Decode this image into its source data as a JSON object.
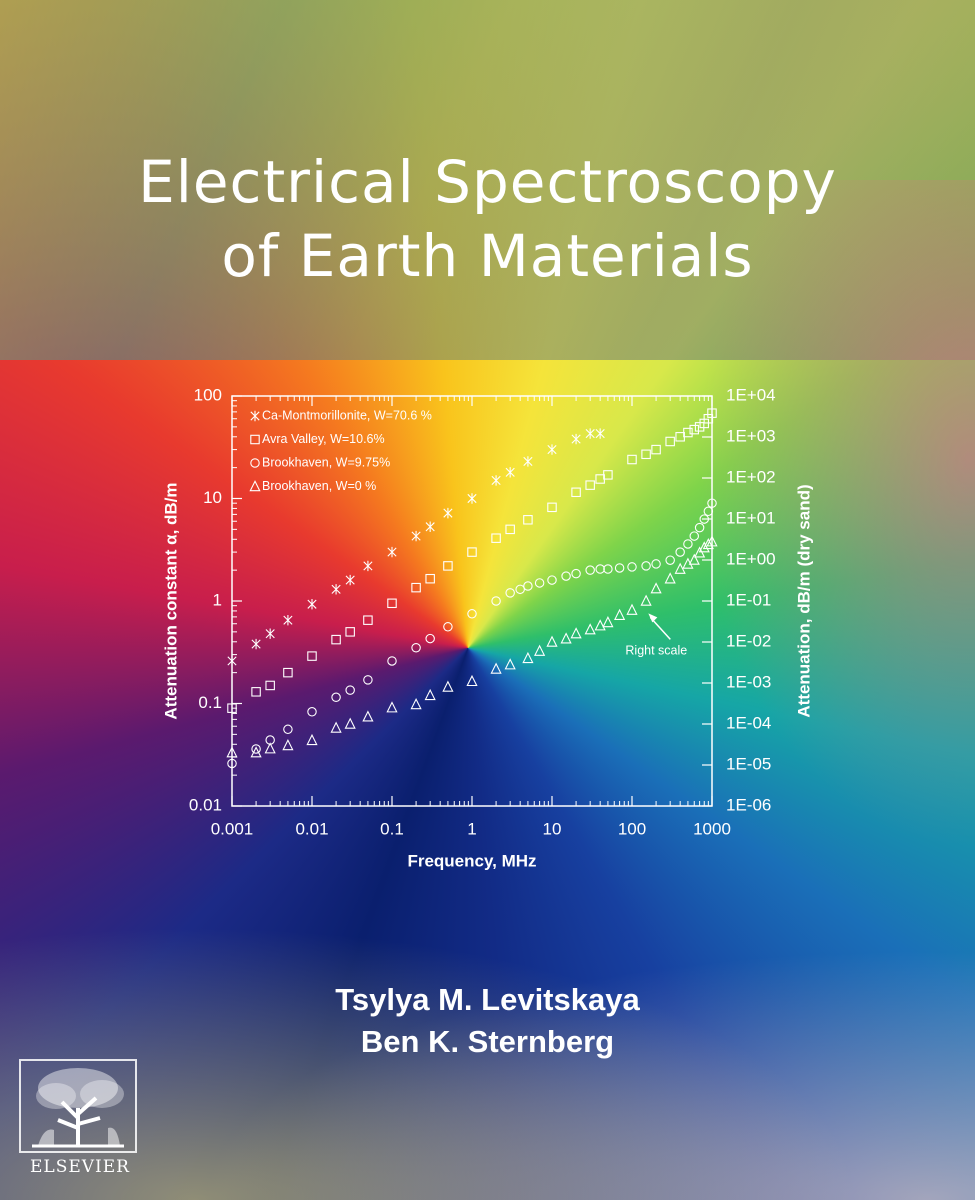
{
  "book": {
    "title_line1": "Electrical Spectroscopy",
    "title_line2": "of Earth Materials",
    "authors": [
      "Tsylya M. Levitskaya",
      "Ben K. Sternberg"
    ],
    "publisher": "ELSEVIER",
    "logo_icon": "elsevier-tree-icon"
  },
  "chart_data": {
    "type": "scatter",
    "x_scale": "log",
    "y_scale": "log",
    "xlabel": "Frequency, MHz",
    "ylabel": "Attenuation constant α, dB/m",
    "y2label": "Attenuation, dB/m (dry sand)",
    "xlim": [
      0.001,
      1000
    ],
    "ylim": [
      0.01,
      100
    ],
    "y2lim": [
      1e-06,
      10000
    ],
    "x_ticks": [
      "0.001",
      "0.01",
      "0.1",
      "1",
      "10",
      "100",
      "1000"
    ],
    "y_ticks": [
      "0.01",
      "0.1",
      "1",
      "10",
      "100"
    ],
    "y2_ticks": [
      "1E-06",
      "1E-05",
      "1E-04",
      "1E-03",
      "1E-02",
      "1E-01",
      "1E+00",
      "1E+01",
      "1E+02",
      "1E+03",
      "1E+04"
    ],
    "legend_position": "top-left",
    "annotation": {
      "text": "Right scale",
      "x": 160,
      "y2": 0.05
    },
    "series": [
      {
        "name": "Ca-Montmorillonite, W=70.6 %",
        "marker": "asterisk",
        "axis": "left",
        "x": [
          0.001,
          0.002,
          0.003,
          0.005,
          0.01,
          0.02,
          0.03,
          0.05,
          0.1,
          0.2,
          0.3,
          0.5,
          1,
          2,
          3,
          5,
          10,
          20,
          30,
          40
        ],
        "y": [
          0.26,
          0.38,
          0.48,
          0.65,
          0.93,
          1.3,
          1.6,
          2.2,
          3.0,
          4.3,
          5.3,
          7.2,
          10,
          15,
          18,
          23,
          30,
          38,
          43,
          43
        ]
      },
      {
        "name": "Avra Valley, W=10.6%",
        "marker": "square",
        "axis": "left",
        "x": [
          0.001,
          0.002,
          0.003,
          0.005,
          0.01,
          0.02,
          0.03,
          0.05,
          0.1,
          0.2,
          0.3,
          0.5,
          1,
          2,
          3,
          5,
          10,
          20,
          30,
          40,
          50,
          100,
          150,
          200,
          300,
          400,
          500,
          600,
          700,
          800,
          900,
          1000
        ],
        "y": [
          0.09,
          0.13,
          0.15,
          0.2,
          0.29,
          0.42,
          0.5,
          0.65,
          0.95,
          1.35,
          1.65,
          2.2,
          3.0,
          4.1,
          5.0,
          6.2,
          8.2,
          11.5,
          13.5,
          15.5,
          17,
          24,
          27,
          30,
          36,
          40,
          44,
          47,
          50,
          54,
          60,
          68
        ]
      },
      {
        "name": "Brookhaven, W=9.75%",
        "marker": "circle",
        "axis": "left",
        "x": [
          0.001,
          0.002,
          0.003,
          0.005,
          0.01,
          0.02,
          0.03,
          0.05,
          0.1,
          0.2,
          0.3,
          0.5,
          1,
          2,
          3,
          4,
          5,
          7,
          10,
          15,
          20,
          30,
          40,
          50,
          70,
          100,
          150,
          200,
          300,
          400,
          500,
          600,
          700,
          800,
          900,
          1000
        ],
        "y": [
          0.026,
          0.036,
          0.044,
          0.056,
          0.083,
          0.115,
          0.135,
          0.17,
          0.26,
          0.35,
          0.43,
          0.56,
          0.75,
          1.0,
          1.2,
          1.3,
          1.4,
          1.5,
          1.6,
          1.75,
          1.85,
          2.0,
          2.05,
          2.05,
          2.1,
          2.15,
          2.2,
          2.3,
          2.5,
          3.0,
          3.6,
          4.3,
          5.2,
          6.3,
          7.5,
          9.0
        ]
      },
      {
        "name": "Brookhaven, W=0 %",
        "marker": "triangle",
        "axis": "right",
        "x": [
          0.001,
          0.002,
          0.003,
          0.005,
          0.01,
          0.02,
          0.03,
          0.05,
          0.1,
          0.2,
          0.3,
          0.5,
          1,
          2,
          3,
          5,
          7,
          10,
          15,
          20,
          30,
          40,
          50,
          70,
          100,
          150,
          200,
          300,
          400,
          500,
          600,
          700,
          800,
          900,
          1000
        ],
        "y": [
          2e-05,
          2e-05,
          2.5e-05,
          3e-05,
          4e-05,
          8e-05,
          0.0001,
          0.00015,
          0.00025,
          0.0003,
          0.0005,
          0.0008,
          0.0011,
          0.0022,
          0.0028,
          0.004,
          0.006,
          0.01,
          0.012,
          0.016,
          0.02,
          0.025,
          0.03,
          0.045,
          0.06,
          0.1,
          0.2,
          0.35,
          0.6,
          0.8,
          1.0,
          1.5,
          2.0,
          2.4,
          2.8
        ]
      }
    ]
  }
}
